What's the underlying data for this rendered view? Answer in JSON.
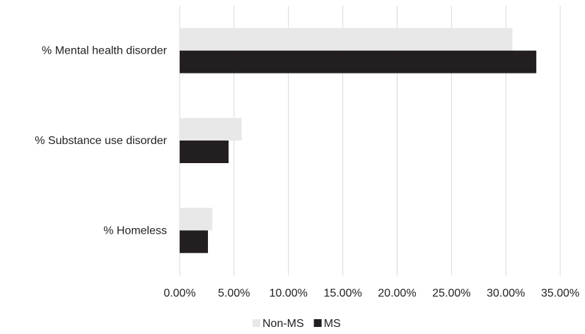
{
  "chart_data": {
    "type": "bar",
    "orientation": "horizontal",
    "categories": [
      "% Mental health disorder",
      "% Substance use disorder",
      "% Homeless"
    ],
    "series": [
      {
        "name": "Non-MS",
        "values": [
          30.6,
          5.7,
          3.0
        ],
        "color": "#e8e8e8"
      },
      {
        "name": "MS",
        "values": [
          32.8,
          4.5,
          2.6
        ],
        "color": "#231f20"
      }
    ],
    "xlim": [
      0,
      35
    ],
    "xticks": [
      0,
      5,
      10,
      15,
      20,
      25,
      30,
      35
    ],
    "xtick_labels": [
      "0.00%",
      "5.00%",
      "10.00%",
      "15.00%",
      "20.00%",
      "25.00%",
      "30.00%",
      "35.00%"
    ],
    "grid": true,
    "legend_position": "bottom"
  }
}
